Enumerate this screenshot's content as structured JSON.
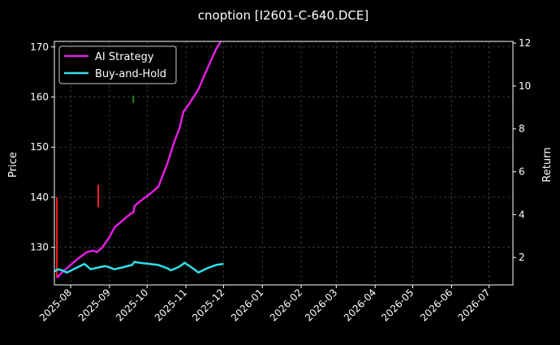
{
  "chart_data": {
    "type": "line",
    "title": "cnoption [I2601-C-640.DCE]",
    "ylabel_left": "Price",
    "ylabel_right": "Return",
    "x_ticks": [
      "2025-08",
      "2025-09",
      "2025-10",
      "2025-11",
      "2025-12",
      "2026-01",
      "2026-02",
      "2026-03",
      "2026-04",
      "2026-05",
      "2026-06",
      "2026-07"
    ],
    "xlim": [
      "2025-07-19",
      "2026-07-20"
    ],
    "ylim_left": [
      122.5,
      171.1
    ],
    "y_ticks_left": [
      130,
      140,
      150,
      160,
      170
    ],
    "ylim_right": [
      0.72,
      12.08
    ],
    "y_ticks_right": [
      2,
      4,
      6,
      8,
      10,
      12
    ],
    "grid": true,
    "legend": {
      "placement": "top-left",
      "entries": [
        {
          "label": "AI Strategy",
          "color": "#e21ee2"
        },
        {
          "label": "Buy-and-Hold",
          "color": "#2fe0e8"
        }
      ]
    },
    "series": [
      {
        "name": "AI Strategy",
        "axis": "right",
        "color": "#e21ee2",
        "points": [
          [
            "2025-07-21",
            1.05
          ],
          [
            "2025-07-25",
            1.3
          ],
          [
            "2025-08-01",
            1.65
          ],
          [
            "2025-08-08",
            2.0
          ],
          [
            "2025-08-14",
            2.25
          ],
          [
            "2025-08-19",
            2.32
          ],
          [
            "2025-08-22",
            2.25
          ],
          [
            "2025-08-26",
            2.45
          ],
          [
            "2025-09-01",
            2.95
          ],
          [
            "2025-09-05",
            3.4
          ],
          [
            "2025-09-12",
            3.75
          ],
          [
            "2025-09-18",
            4.05
          ],
          [
            "2025-09-20",
            4.1
          ],
          [
            "2025-09-21",
            4.4
          ],
          [
            "2025-09-26",
            4.65
          ],
          [
            "2025-10-03",
            4.95
          ],
          [
            "2025-10-10",
            5.3
          ],
          [
            "2025-10-17",
            6.35
          ],
          [
            "2025-10-23",
            7.45
          ],
          [
            "2025-10-27",
            8.05
          ],
          [
            "2025-10-30",
            8.8
          ],
          [
            "2025-11-04",
            9.2
          ],
          [
            "2025-11-11",
            9.85
          ],
          [
            "2025-11-18",
            10.8
          ],
          [
            "2025-11-25",
            11.7
          ],
          [
            "2025-12-01",
            12.3
          ]
        ]
      },
      {
        "name": "Buy-and-Hold",
        "axis": "right",
        "color": "#2fe0e8",
        "points": [
          [
            "2025-07-19",
            1.35
          ],
          [
            "2025-07-22",
            1.45
          ],
          [
            "2025-07-25",
            1.4
          ],
          [
            "2025-07-29",
            1.3
          ],
          [
            "2025-08-05",
            1.5
          ],
          [
            "2025-08-12",
            1.7
          ],
          [
            "2025-08-17",
            1.45
          ],
          [
            "2025-08-24",
            1.55
          ],
          [
            "2025-08-29",
            1.6
          ],
          [
            "2025-09-05",
            1.45
          ],
          [
            "2025-09-12",
            1.55
          ],
          [
            "2025-09-19",
            1.65
          ],
          [
            "2025-09-21",
            1.8
          ],
          [
            "2025-09-25",
            1.75
          ],
          [
            "2025-10-03",
            1.7
          ],
          [
            "2025-10-10",
            1.65
          ],
          [
            "2025-10-17",
            1.5
          ],
          [
            "2025-10-20",
            1.4
          ],
          [
            "2025-10-26",
            1.55
          ],
          [
            "2025-10-31",
            1.75
          ],
          [
            "2025-11-04",
            1.6
          ],
          [
            "2025-11-11",
            1.3
          ],
          [
            "2025-11-18",
            1.5
          ],
          [
            "2025-11-25",
            1.65
          ],
          [
            "2025-12-01",
            1.7
          ]
        ]
      }
    ],
    "markers": [
      {
        "date": "2025-07-21",
        "low": 124.0,
        "high": 140.0,
        "color": "#ff1a1a"
      },
      {
        "date": "2025-08-23",
        "low": 138.0,
        "high": 142.5,
        "color": "#ff1a1a"
      },
      {
        "date": "2025-09-20",
        "low": 158.8,
        "high": 160.3,
        "color": "#1e8a1e"
      }
    ]
  }
}
